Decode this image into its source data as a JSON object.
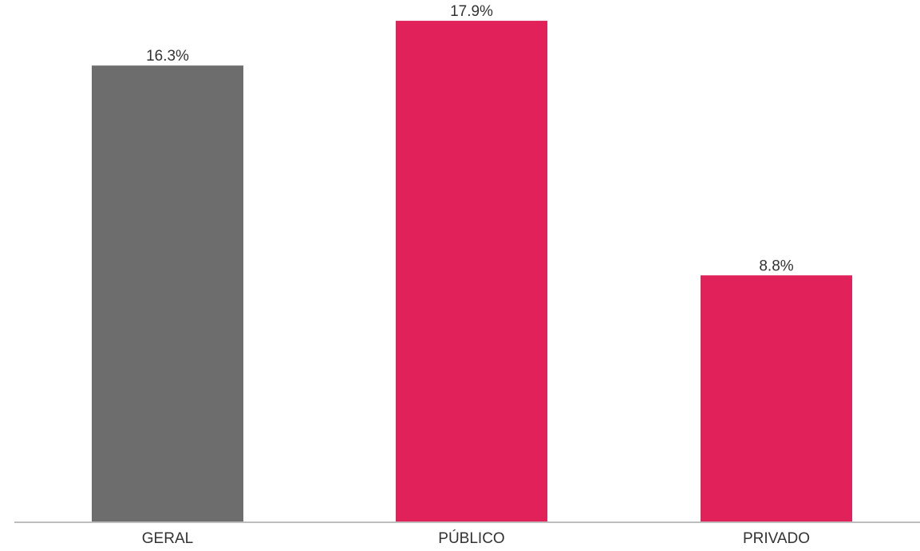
{
  "chart_data": {
    "type": "bar",
    "title": "",
    "xlabel": "",
    "ylabel": "",
    "categories": [
      "GERAL",
      "PÚBLICO",
      "PRIVADO"
    ],
    "values": [
      16.3,
      17.9,
      8.8
    ],
    "value_labels": [
      "16.3%",
      "17.9%",
      "8.8%"
    ],
    "bar_colors": [
      "#6d6d6d",
      "#e0215a",
      "#e0215a"
    ],
    "axis_color": "#bdbdbd",
    "ylim": [
      0,
      20
    ],
    "grid": false,
    "legend": "none"
  }
}
